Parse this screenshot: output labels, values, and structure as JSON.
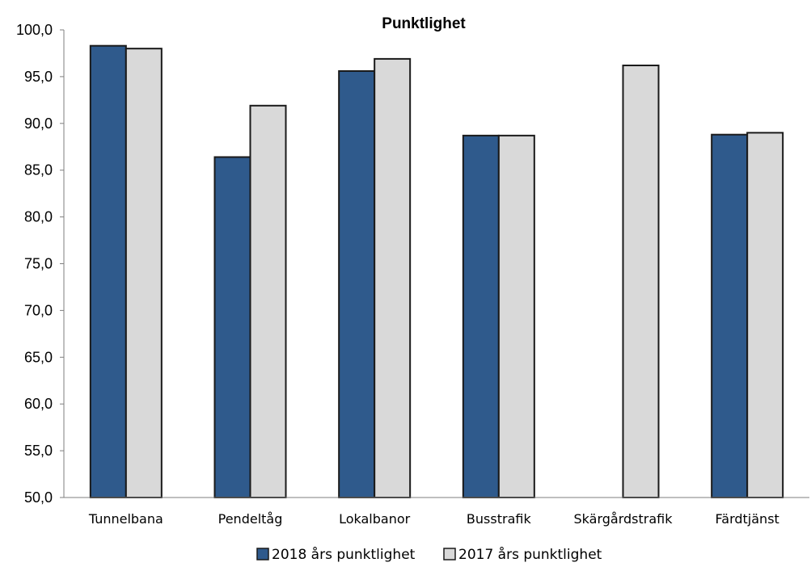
{
  "chart_data": {
    "type": "bar",
    "title": "Punktlighet",
    "xlabel": "",
    "ylabel": "",
    "categories": [
      "Tunnelbana",
      "Pendeltåg",
      "Lokalbanor",
      "Busstrafik",
      "Skärgårdstrafik",
      "Färdtjänst"
    ],
    "series": [
      {
        "name": "2018 års punktlighet",
        "color": "#2f5a8c",
        "values": [
          98.3,
          86.4,
          95.6,
          88.7,
          null,
          88.8
        ]
      },
      {
        "name": "2017 års punktlighet",
        "color": "#d9d9d9",
        "values": [
          98.0,
          91.9,
          96.9,
          88.7,
          96.2,
          89.0
        ]
      }
    ],
    "ylim": [
      50,
      100
    ],
    "yticks": [
      50,
      55,
      60,
      65,
      70,
      75,
      80,
      85,
      90,
      95,
      100
    ],
    "ytick_labels": [
      "50,0",
      "55,0",
      "60,0",
      "65,0",
      "70,0",
      "75,0",
      "80,0",
      "85,0",
      "90,0",
      "95,0",
      "100,0"
    ],
    "grid": false,
    "legend": "bottom",
    "bar_border_color": "#1a1a1a"
  }
}
